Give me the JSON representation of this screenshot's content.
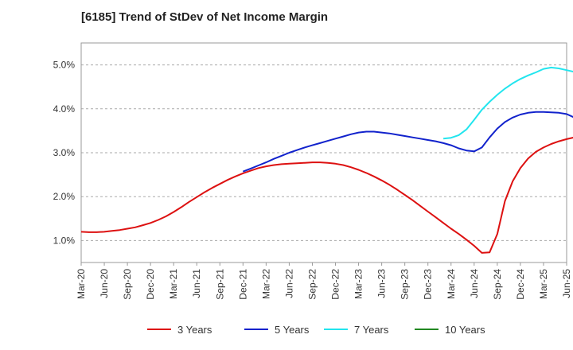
{
  "chart_data": {
    "type": "line",
    "title": "[6185]  Trend of StDev of Net Income Margin",
    "xlabel": "",
    "ylabel": "",
    "x_ticks": [
      "Mar-20",
      "Jun-20",
      "Sep-20",
      "Dec-20",
      "Mar-21",
      "Jun-21",
      "Sep-21",
      "Dec-21",
      "Mar-22",
      "Jun-22",
      "Sep-22",
      "Dec-22",
      "Mar-23",
      "Jun-23",
      "Sep-23",
      "Dec-23",
      "Mar-24",
      "Jun-24",
      "Sep-24",
      "Dec-24",
      "Mar-25",
      "Jun-25"
    ],
    "y_ticks": [
      "1.0%",
      "2.0%",
      "3.0%",
      "4.0%",
      "5.0%"
    ],
    "ylim": [
      0.5,
      5.5
    ],
    "grid": "horizontal dashed",
    "legend_position": "bottom",
    "series": [
      {
        "name": "3 Years",
        "color": "#dd1111",
        "points": [
          [
            "2020-03",
            1.2
          ],
          [
            "2020-04",
            1.19
          ],
          [
            "2020-05",
            1.19
          ],
          [
            "2020-06",
            1.2
          ],
          [
            "2020-07",
            1.22
          ],
          [
            "2020-08",
            1.24
          ],
          [
            "2020-09",
            1.27
          ],
          [
            "2020-10",
            1.3
          ],
          [
            "2020-11",
            1.35
          ],
          [
            "2020-12",
            1.4
          ],
          [
            "2021-01",
            1.47
          ],
          [
            "2021-02",
            1.55
          ],
          [
            "2021-03",
            1.65
          ],
          [
            "2021-04",
            1.76
          ],
          [
            "2021-05",
            1.88
          ],
          [
            "2021-06",
            1.99
          ],
          [
            "2021-07",
            2.1
          ],
          [
            "2021-08",
            2.2
          ],
          [
            "2021-09",
            2.29
          ],
          [
            "2021-10",
            2.38
          ],
          [
            "2021-11",
            2.46
          ],
          [
            "2021-12",
            2.53
          ],
          [
            "2022-01",
            2.59
          ],
          [
            "2022-02",
            2.65
          ],
          [
            "2022-03",
            2.69
          ],
          [
            "2022-04",
            2.72
          ],
          [
            "2022-05",
            2.74
          ],
          [
            "2022-06",
            2.75
          ],
          [
            "2022-07",
            2.76
          ],
          [
            "2022-08",
            2.77
          ],
          [
            "2022-09",
            2.78
          ],
          [
            "2022-10",
            2.78
          ],
          [
            "2022-11",
            2.77
          ],
          [
            "2022-12",
            2.75
          ],
          [
            "2023-01",
            2.72
          ],
          [
            "2023-02",
            2.67
          ],
          [
            "2023-03",
            2.61
          ],
          [
            "2023-04",
            2.54
          ],
          [
            "2023-05",
            2.46
          ],
          [
            "2023-06",
            2.37
          ],
          [
            "2023-07",
            2.27
          ],
          [
            "2023-08",
            2.16
          ],
          [
            "2023-09",
            2.04
          ],
          [
            "2023-10",
            1.92
          ],
          [
            "2023-11",
            1.79
          ],
          [
            "2023-12",
            1.66
          ],
          [
            "2024-01",
            1.53
          ],
          [
            "2024-02",
            1.4
          ],
          [
            "2024-03",
            1.27
          ],
          [
            "2024-04",
            1.15
          ],
          [
            "2024-05",
            1.02
          ],
          [
            "2024-06",
            0.88
          ],
          [
            "2024-07",
            0.72
          ],
          [
            "2024-08",
            0.73
          ],
          [
            "2024-09",
            1.15
          ],
          [
            "2024-10",
            1.9
          ],
          [
            "2024-11",
            2.35
          ],
          [
            "2024-12",
            2.65
          ],
          [
            "2025-01",
            2.87
          ],
          [
            "2025-02",
            3.02
          ],
          [
            "2025-03",
            3.12
          ],
          [
            "2025-04",
            3.2
          ],
          [
            "2025-05",
            3.26
          ],
          [
            "2025-06",
            3.31
          ],
          [
            "2025-07",
            3.35
          ],
          [
            "2025-08",
            3.33
          ],
          [
            "2025-09",
            3.35
          ],
          [
            "2025-10",
            3.5
          ]
        ]
      },
      {
        "name": "5 Years",
        "color": "#1122cc",
        "points": [
          [
            "2021-12",
            2.57
          ],
          [
            "2022-01",
            2.64
          ],
          [
            "2022-02",
            2.71
          ],
          [
            "2022-03",
            2.78
          ],
          [
            "2022-04",
            2.86
          ],
          [
            "2022-05",
            2.93
          ],
          [
            "2022-06",
            3.0
          ],
          [
            "2022-07",
            3.06
          ],
          [
            "2022-08",
            3.12
          ],
          [
            "2022-09",
            3.17
          ],
          [
            "2022-10",
            3.22
          ],
          [
            "2022-11",
            3.27
          ],
          [
            "2022-12",
            3.32
          ],
          [
            "2023-01",
            3.37
          ],
          [
            "2023-02",
            3.42
          ],
          [
            "2023-03",
            3.46
          ],
          [
            "2023-04",
            3.48
          ],
          [
            "2023-05",
            3.48
          ],
          [
            "2023-06",
            3.46
          ],
          [
            "2023-07",
            3.44
          ],
          [
            "2023-08",
            3.41
          ],
          [
            "2023-09",
            3.38
          ],
          [
            "2023-10",
            3.35
          ],
          [
            "2023-11",
            3.32
          ],
          [
            "2023-12",
            3.29
          ],
          [
            "2024-01",
            3.26
          ],
          [
            "2024-02",
            3.22
          ],
          [
            "2024-03",
            3.17
          ],
          [
            "2024-04",
            3.1
          ],
          [
            "2024-05",
            3.05
          ],
          [
            "2024-06",
            3.03
          ],
          [
            "2024-07",
            3.12
          ],
          [
            "2024-08",
            3.35
          ],
          [
            "2024-09",
            3.55
          ],
          [
            "2024-10",
            3.7
          ],
          [
            "2024-11",
            3.8
          ],
          [
            "2024-12",
            3.87
          ],
          [
            "2025-01",
            3.91
          ],
          [
            "2025-02",
            3.93
          ],
          [
            "2025-03",
            3.93
          ],
          [
            "2025-04",
            3.92
          ],
          [
            "2025-05",
            3.91
          ],
          [
            "2025-06",
            3.88
          ],
          [
            "2025-07",
            3.8
          ],
          [
            "2025-08",
            3.7
          ],
          [
            "2025-09",
            3.66
          ]
        ]
      },
      {
        "name": "7 Years",
        "color": "#22e5ee",
        "points": [
          [
            "2024-02",
            3.32
          ],
          [
            "2024-03",
            3.34
          ],
          [
            "2024-04",
            3.4
          ],
          [
            "2024-05",
            3.53
          ],
          [
            "2024-06",
            3.75
          ],
          [
            "2024-07",
            3.98
          ],
          [
            "2024-08",
            4.16
          ],
          [
            "2024-09",
            4.32
          ],
          [
            "2024-10",
            4.46
          ],
          [
            "2024-11",
            4.58
          ],
          [
            "2024-12",
            4.68
          ],
          [
            "2025-01",
            4.76
          ],
          [
            "2025-02",
            4.83
          ],
          [
            "2025-03",
            4.91
          ],
          [
            "2025-04",
            4.94
          ],
          [
            "2025-05",
            4.92
          ],
          [
            "2025-06",
            4.88
          ],
          [
            "2025-07",
            4.84
          ]
        ]
      },
      {
        "name": "10 Years",
        "color": "#228822",
        "points": []
      }
    ]
  }
}
